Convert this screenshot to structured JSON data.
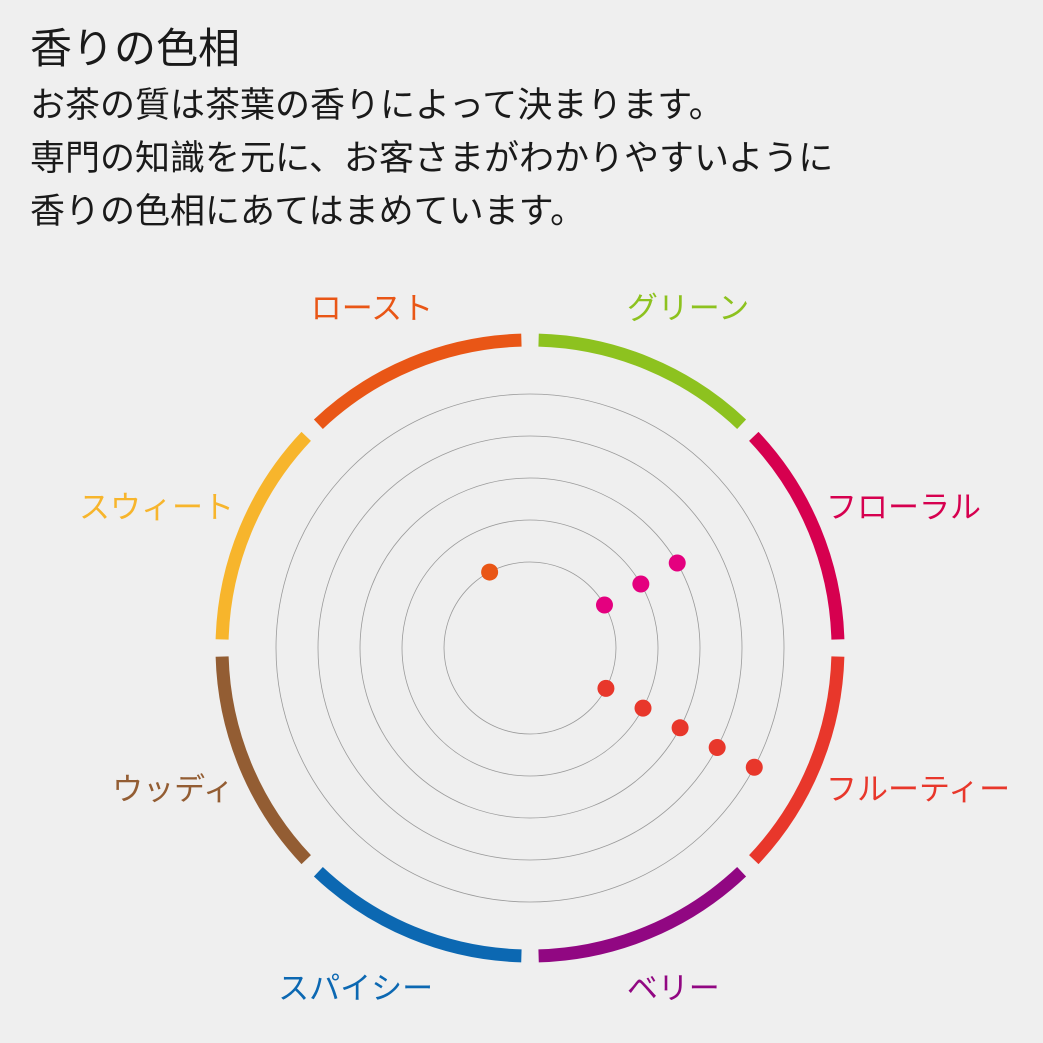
{
  "title": "香りの色相",
  "description": [
    "お茶の質は茶葉の香りによって決まります。",
    "専門の知識を元に、お客さまがわかりやすいように",
    "香りの色相にあてはまめています。"
  ],
  "wheel": {
    "ring_count": 5,
    "segments": [
      {
        "label": "グリーン",
        "color": "#8dc21f"
      },
      {
        "label": "フローラル",
        "color": "#d6004f"
      },
      {
        "label": "フルーティー",
        "color": "#e8372b"
      },
      {
        "label": "ベリー",
        "color": "#910782"
      },
      {
        "label": "スパイシー",
        "color": "#0c68b2"
      },
      {
        "label": "ウッディ",
        "color": "#935d33"
      },
      {
        "label": "スウィート",
        "color": "#f7b52c"
      },
      {
        "label": "ロースト",
        "color": "#e95616"
      }
    ],
    "dots": [
      {
        "segment": "ロースト",
        "level": 1,
        "color": "#e95616"
      },
      {
        "segment": "フローラル",
        "level": 1,
        "color": "#e4007f"
      },
      {
        "segment": "フローラル",
        "level": 2,
        "color": "#e4007f"
      },
      {
        "segment": "フローラル",
        "level": 3,
        "color": "#e4007f"
      },
      {
        "segment": "フルーティー",
        "level": 1,
        "color": "#e8372b"
      },
      {
        "segment": "フルーティー",
        "level": 2,
        "color": "#e8372b"
      },
      {
        "segment": "フルーティー",
        "level": 3,
        "color": "#e8372b"
      },
      {
        "segment": "フルーティー",
        "level": 4,
        "color": "#e8372b"
      },
      {
        "segment": "フルーティー",
        "level": 5,
        "color": "#e8372b"
      }
    ]
  }
}
